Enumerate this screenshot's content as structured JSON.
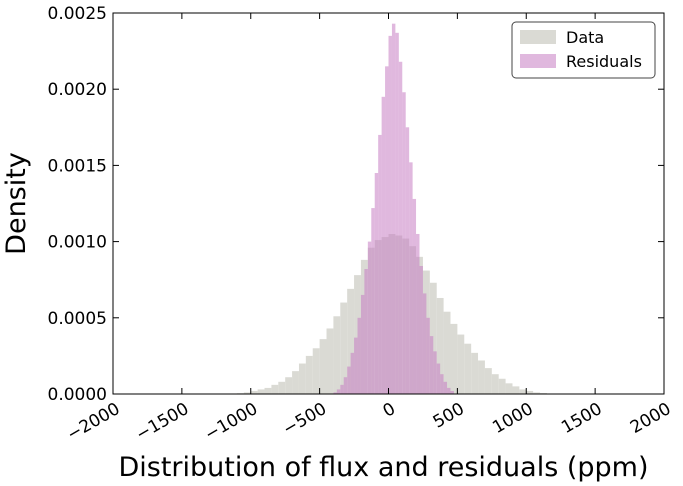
{
  "chart_data": {
    "type": "histogram",
    "title": "",
    "xlabel": "Distribution of flux and residuals (ppm)",
    "ylabel": "Density",
    "xlim": [
      -2000,
      2000
    ],
    "ylim": [
      0,
      0.0025
    ],
    "x_ticks": [
      -2000,
      -1500,
      -1000,
      -500,
      0,
      500,
      1000,
      1500,
      2000
    ],
    "x_tick_labels": [
      "−2000",
      "−1500",
      "−1000",
      "−500",
      "0",
      "500",
      "1000",
      "1500",
      "2000"
    ],
    "y_ticks": [
      0.0,
      0.0005,
      0.001,
      0.0015,
      0.002,
      0.0025
    ],
    "y_tick_labels": [
      "0.0000",
      "0.0005",
      "0.0010",
      "0.0015",
      "0.0020",
      "0.0025"
    ],
    "grid": false,
    "legend_position": "top-right",
    "series": [
      {
        "name": "Data",
        "color": "#d6d6cf",
        "opacity": 0.9,
        "bin_edges": [
          -1100,
          -1050,
          -1000,
          -950,
          -900,
          -850,
          -800,
          -750,
          -700,
          -650,
          -600,
          -550,
          -500,
          -450,
          -400,
          -350,
          -300,
          -250,
          -200,
          -150,
          -100,
          -50,
          0,
          50,
          100,
          150,
          200,
          250,
          300,
          350,
          400,
          450,
          500,
          550,
          600,
          650,
          700,
          750,
          800,
          850,
          900,
          950,
          1000,
          1050,
          1100,
          1150,
          1200,
          1250
        ],
        "densities": [
          5e-06,
          1e-05,
          2e-05,
          3e-05,
          4e-05,
          6e-05,
          8e-05,
          0.00011,
          0.00015,
          0.0002,
          0.00025,
          0.0003,
          0.00036,
          0.00043,
          0.00051,
          0.0006,
          0.00069,
          0.00078,
          0.00088,
          0.00096,
          0.00101,
          0.00103,
          0.00105,
          0.00104,
          0.00102,
          0.00097,
          0.0009,
          0.00081,
          0.00073,
          0.00063,
          0.00054,
          0.00046,
          0.00039,
          0.00033,
          0.00027,
          0.00022,
          0.00017,
          0.00013,
          0.0001,
          7e-05,
          5e-05,
          3e-05,
          2e-05,
          1e-05,
          6e-06,
          3e-06,
          1e-06
        ]
      },
      {
        "name": "Residuals",
        "color": "#c77dc2",
        "opacity": 0.55,
        "bin_edges": [
          -400,
          -375,
          -350,
          -325,
          -300,
          -275,
          -250,
          -225,
          -200,
          -175,
          -150,
          -125,
          -100,
          -75,
          -50,
          -25,
          0,
          25,
          50,
          75,
          100,
          125,
          150,
          175,
          200,
          225,
          250,
          275,
          300,
          325,
          350,
          375,
          400,
          425,
          450,
          475
        ],
        "densities": [
          1e-05,
          3e-05,
          6e-05,
          0.00011,
          0.00018,
          0.00027,
          0.00037,
          0.0005,
          0.00065,
          0.00082,
          0.001,
          0.00122,
          0.00145,
          0.0017,
          0.00195,
          0.00215,
          0.00235,
          0.00243,
          0.00237,
          0.00218,
          0.00198,
          0.00175,
          0.00152,
          0.00128,
          0.00105,
          0.00084,
          0.00066,
          0.0005,
          0.00038,
          0.00028,
          0.0002,
          0.00013,
          8e-05,
          4e-05,
          2e-05
        ]
      }
    ]
  }
}
